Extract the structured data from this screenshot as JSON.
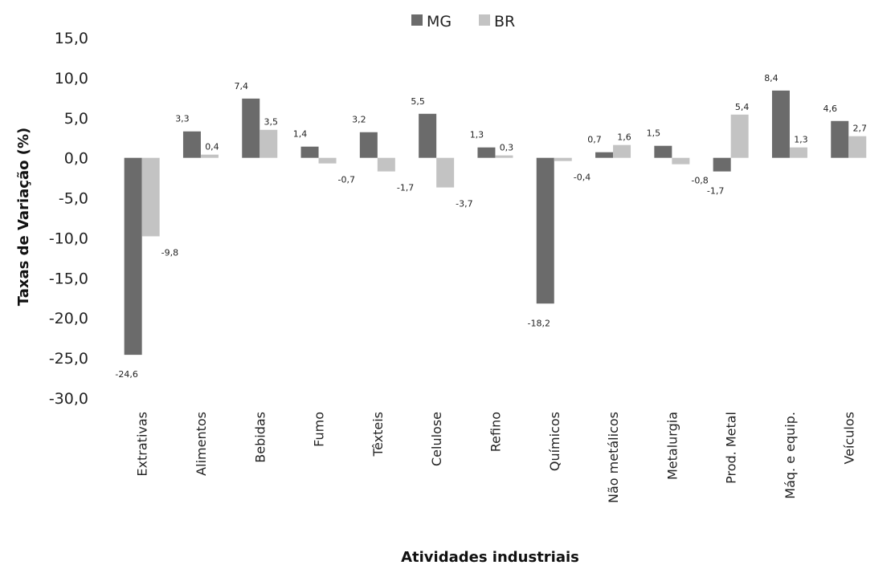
{
  "chart_data": {
    "type": "bar",
    "title": "",
    "xlabel": "Atividades industriais",
    "ylabel": "Taxas de Variação (%)",
    "ylim": [
      -30,
      15
    ],
    "yticks": [
      "15,0",
      "10,0",
      "5,0",
      "0,0",
      "-5,0",
      "-10,0",
      "-15,0",
      "-20,0",
      "-25,0",
      "-30,0"
    ],
    "ytick_values": [
      15,
      10,
      5,
      0,
      -5,
      -10,
      -15,
      -20,
      -25,
      -30
    ],
    "grid": false,
    "legend_position": "top-center",
    "categories": [
      "Extrativas",
      "Alimentos",
      "Bebidas",
      "Fumo",
      "Têxteis",
      "Celulose",
      "Refino",
      "Químicos",
      "Não metálicos",
      "Metalurgia",
      "Prod. Metal",
      "Máq. e equip.",
      "Veículos"
    ],
    "series": [
      {
        "name": "MG",
        "color": "#6b6b6b",
        "values": [
          -24.6,
          3.3,
          7.4,
          1.4,
          3.2,
          5.5,
          1.3,
          -18.2,
          0.7,
          1.5,
          -1.7,
          8.4,
          4.6
        ],
        "labels": [
          "-24,6",
          "3,3",
          "7,4",
          "1,4",
          "3,2",
          "5,5",
          "1,3",
          "-18,2",
          "0,7",
          "1,5",
          "-1,7",
          "8,4",
          "4,6"
        ]
      },
      {
        "name": "BR",
        "color": "#c3c3c3",
        "values": [
          -9.8,
          0.4,
          3.5,
          -0.7,
          -1.7,
          -3.7,
          0.3,
          -0.4,
          1.6,
          -0.8,
          5.4,
          1.3,
          2.7
        ],
        "labels": [
          "-9,8",
          "0,4",
          "3,5",
          "-0,7",
          "-1,7",
          "-3,7",
          "0,3",
          "-0,4",
          "1,6",
          "-0,8",
          "5,4",
          "1,3",
          "2,7"
        ]
      }
    ]
  }
}
